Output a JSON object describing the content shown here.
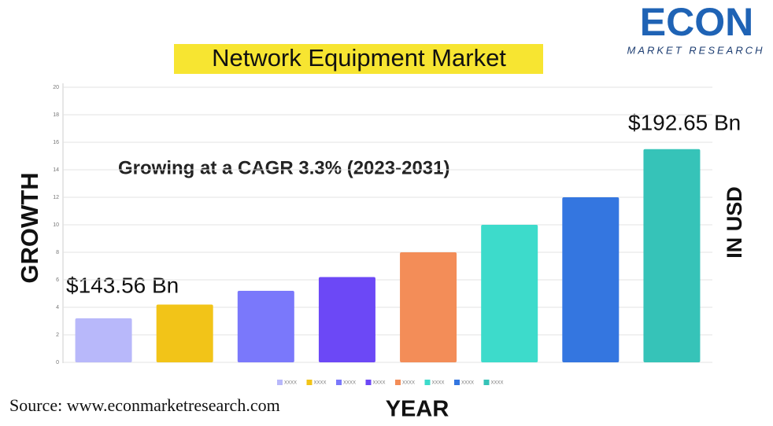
{
  "logo": {
    "name": "ECON",
    "tagline": "MARKET RESEARCH"
  },
  "chart_data": {
    "type": "bar",
    "title": "Network Equipment Market",
    "categories": [
      null,
      null,
      null,
      null,
      null,
      null,
      null,
      null
    ],
    "values": [
      3.2,
      4.2,
      5.2,
      6.2,
      8,
      10,
      12,
      15.5
    ],
    "colors": [
      "#b8b8fa",
      "#f2c418",
      "#7a78fb",
      "#6c48f6",
      "#f38d58",
      "#3ddbcb",
      "#3476e0",
      "#36c3b8"
    ],
    "legend": [
      "XXXX",
      "XXXX",
      "XXXX",
      "XXXX",
      "XXXX",
      "XXXX",
      "XXXX",
      "XXXX"
    ],
    "ylim": [
      0,
      20
    ],
    "yticks": [
      0,
      2,
      4,
      6,
      8,
      10,
      12,
      14,
      16,
      18,
      20
    ],
    "grid": true,
    "annotations": {
      "start_value": "$143.56 Bn",
      "end_value": "$192.65 Bn",
      "cagr": "Growing at a CAGR 3.3% (2023-2031)"
    },
    "ylabel": "GROWTH",
    "y2label": "IN USD",
    "xlabel": "YEAR",
    "source": "Source: www.econmarketresearch.com"
  }
}
